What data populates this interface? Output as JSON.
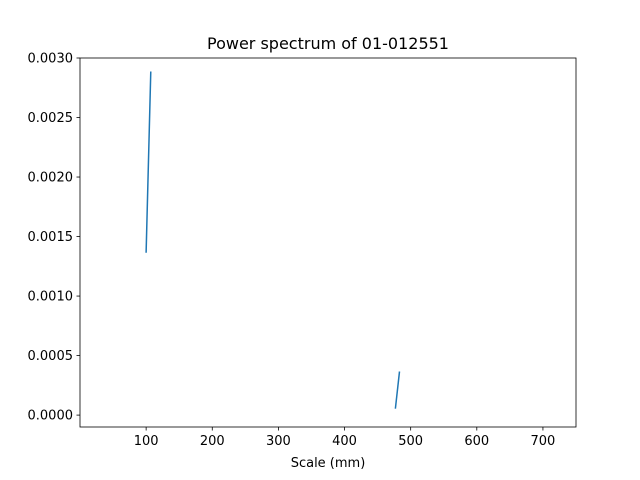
{
  "chart_data": {
    "type": "line",
    "title": "Power spectrum of 01-012551",
    "xlabel": "Scale (mm)",
    "ylabel": "",
    "xlim": [
      0,
      750
    ],
    "ylim": [
      -0.0001,
      0.003
    ],
    "grid": false,
    "legend": "none",
    "x_ticks": [
      100,
      200,
      300,
      400,
      500,
      600,
      700
    ],
    "x_tick_labels": [
      "100",
      "200",
      "300",
      "400",
      "500",
      "600",
      "700"
    ],
    "y_ticks": [
      0.0,
      0.0005,
      0.001,
      0.0015,
      0.002,
      0.0025,
      0.003
    ],
    "y_tick_labels": [
      "0.0000",
      "0.0005",
      "0.0010",
      "0.0015",
      "0.0020",
      "0.0025",
      "0.0030"
    ],
    "series": [
      {
        "color": "#1f77b4",
        "x": [
          100,
          107
        ],
        "y": [
          0.00137,
          0.00288
        ]
      },
      {
        "color": "#1f77b4",
        "x": [
          477,
          483
        ],
        "y": [
          6e-05,
          0.00036
        ]
      }
    ]
  }
}
